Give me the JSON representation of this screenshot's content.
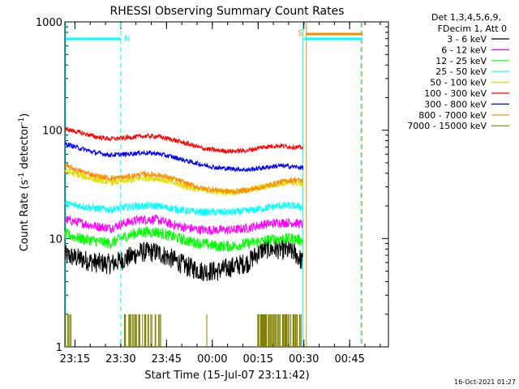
{
  "chart_data": {
    "type": "line",
    "title": "RHESSI Observing Summary Count Rates",
    "xlabel": "Start Time (15-Jul-07 23:11:42)",
    "ylabel_main": "Count Rate (s",
    "ylabel_sup1": "-1",
    "ylabel_mid": " detector",
    "ylabel_sup2": "-1",
    "ylabel_end": ")",
    "x_unit": "minutes after 23:11:42 on 15-Jul-07",
    "xlim": [
      0,
      106
    ],
    "ylim": [
      1,
      1000
    ],
    "yscale": "log",
    "x_ticks": [
      {
        "t": 3.3,
        "label": "23:15"
      },
      {
        "t": 18.3,
        "label": "23:30"
      },
      {
        "t": 33.3,
        "label": "23:45"
      },
      {
        "t": 48.3,
        "label": "00:00"
      },
      {
        "t": 63.3,
        "label": "00:15"
      },
      {
        "t": 78.3,
        "label": "00:30"
      },
      {
        "t": 93.3,
        "label": "00:45"
      }
    ],
    "y_ticks": [
      {
        "v": 1,
        "label": "1"
      },
      {
        "v": 10,
        "label": "10"
      },
      {
        "v": 100,
        "label": "100"
      },
      {
        "v": 1000,
        "label": "1000"
      }
    ],
    "legend_header": [
      "Det 1,3,4,5,6,9,",
      "FDecim 1, Att 0"
    ],
    "legend_placement": "right",
    "series": [
      {
        "name": "3 - 6 keV",
        "color": "#000000",
        "data": [
          [
            0,
            7
          ],
          [
            5,
            6.5
          ],
          [
            10,
            6
          ],
          [
            15,
            5.8
          ],
          [
            20,
            6.5
          ],
          [
            25,
            7.5
          ],
          [
            30,
            7.5
          ],
          [
            35,
            6.5
          ],
          [
            40,
            5.5
          ],
          [
            45,
            5
          ],
          [
            50,
            5
          ],
          [
            55,
            5.5
          ],
          [
            60,
            6
          ],
          [
            65,
            8
          ],
          [
            70,
            8
          ],
          [
            75,
            7.5
          ],
          [
            78,
            6
          ]
        ]
      },
      {
        "name": "6 - 12 keV",
        "color": "#ff00ff",
        "data": [
          [
            0,
            15
          ],
          [
            5,
            14
          ],
          [
            10,
            13
          ],
          [
            15,
            12.5
          ],
          [
            20,
            14
          ],
          [
            25,
            15
          ],
          [
            30,
            15
          ],
          [
            35,
            13.5
          ],
          [
            40,
            12.5
          ],
          [
            45,
            12
          ],
          [
            50,
            12
          ],
          [
            55,
            12
          ],
          [
            60,
            12.5
          ],
          [
            65,
            13.5
          ],
          [
            70,
            14
          ],
          [
            75,
            14
          ],
          [
            78,
            13.5
          ]
        ]
      },
      {
        "name": "12 - 25 keV",
        "color": "#00ff00",
        "data": [
          [
            0,
            11
          ],
          [
            5,
            10
          ],
          [
            10,
            9.5
          ],
          [
            15,
            9
          ],
          [
            20,
            10.5
          ],
          [
            25,
            11.5
          ],
          [
            30,
            11.5
          ],
          [
            35,
            10.5
          ],
          [
            40,
            9.5
          ],
          [
            45,
            9
          ],
          [
            50,
            8.5
          ],
          [
            55,
            8.5
          ],
          [
            60,
            9
          ],
          [
            65,
            9.5
          ],
          [
            70,
            10
          ],
          [
            75,
            10
          ],
          [
            78,
            9.5
          ]
        ]
      },
      {
        "name": "25 - 50 keV",
        "color": "#00ffff",
        "data": [
          [
            0,
            21
          ],
          [
            5,
            20
          ],
          [
            10,
            19
          ],
          [
            15,
            18.5
          ],
          [
            20,
            19.5
          ],
          [
            25,
            20
          ],
          [
            30,
            20
          ],
          [
            35,
            19
          ],
          [
            40,
            18
          ],
          [
            45,
            17.5
          ],
          [
            50,
            17.5
          ],
          [
            55,
            17.5
          ],
          [
            60,
            18
          ],
          [
            65,
            19
          ],
          [
            70,
            20
          ],
          [
            75,
            20
          ],
          [
            78,
            19.5
          ]
        ]
      },
      {
        "name": "50 - 100 keV",
        "color": "#e0e000",
        "data": [
          [
            0,
            42
          ],
          [
            5,
            38
          ],
          [
            10,
            35
          ],
          [
            15,
            33
          ],
          [
            20,
            34
          ],
          [
            25,
            36
          ],
          [
            30,
            36
          ],
          [
            35,
            33
          ],
          [
            40,
            30
          ],
          [
            45,
            28
          ],
          [
            50,
            27
          ],
          [
            55,
            27
          ],
          [
            60,
            28
          ],
          [
            65,
            30
          ],
          [
            70,
            32
          ],
          [
            75,
            33
          ],
          [
            78,
            32
          ]
        ]
      },
      {
        "name": "100 - 300 keV",
        "color": "#ff0000",
        "data": [
          [
            0,
            103
          ],
          [
            5,
            95
          ],
          [
            10,
            87
          ],
          [
            15,
            83
          ],
          [
            20,
            85
          ],
          [
            25,
            88
          ],
          [
            30,
            88
          ],
          [
            35,
            82
          ],
          [
            40,
            75
          ],
          [
            45,
            68
          ],
          [
            50,
            65
          ],
          [
            55,
            64
          ],
          [
            60,
            65
          ],
          [
            65,
            70
          ],
          [
            70,
            72
          ],
          [
            75,
            70
          ],
          [
            78,
            69
          ]
        ]
      },
      {
        "name": "300 - 800 keV",
        "color": "#0000ff",
        "data": [
          [
            0,
            75
          ],
          [
            5,
            68
          ],
          [
            10,
            62
          ],
          [
            15,
            59
          ],
          [
            20,
            60
          ],
          [
            25,
            62
          ],
          [
            30,
            61
          ],
          [
            35,
            57
          ],
          [
            40,
            52
          ],
          [
            45,
            48
          ],
          [
            50,
            45
          ],
          [
            55,
            44
          ],
          [
            60,
            43
          ],
          [
            65,
            45
          ],
          [
            70,
            47
          ],
          [
            75,
            46
          ],
          [
            78,
            45
          ]
        ]
      },
      {
        "name": "800 - 7000 keV",
        "color": "#ff8c00",
        "data": [
          [
            0,
            47
          ],
          [
            5,
            42
          ],
          [
            10,
            38
          ],
          [
            15,
            36
          ],
          [
            20,
            37
          ],
          [
            25,
            39
          ],
          [
            30,
            39
          ],
          [
            35,
            36
          ],
          [
            40,
            32
          ],
          [
            45,
            29
          ],
          [
            50,
            28
          ],
          [
            55,
            27
          ],
          [
            60,
            28
          ],
          [
            65,
            30
          ],
          [
            70,
            33
          ],
          [
            75,
            35
          ],
          [
            78,
            34
          ]
        ]
      },
      {
        "name": "7000 - 15000 keV",
        "color": "#808000",
        "data": []
      }
    ],
    "state_bars": [
      {
        "label": "N",
        "t_start": 0,
        "t_end": 18.3,
        "color": "#00ffff"
      },
      {
        "label": "S",
        "t_start": 78.7,
        "t_end": 97.5,
        "color": "#ff8c00"
      }
    ],
    "state_bar_second": {
      "t_start": 78.3,
      "t_end": 97.5,
      "color": "#00ffff"
    },
    "vlines": [
      {
        "t": 18.3,
        "color": "#00ffff",
        "dashed": true
      },
      {
        "t": 78.0,
        "color": "#00ffff",
        "dashed": false
      },
      {
        "t": 79.1,
        "color": "#ff8c00",
        "dashed": false
      },
      {
        "t": 97.0,
        "color": "#00ffff",
        "dashed": true
      },
      {
        "t": 97.3,
        "color": "#ff8c00",
        "dashed": true
      }
    ],
    "high_energy_spans": [
      {
        "t_start": 0,
        "t_end": 2
      },
      {
        "t_start": 19.5,
        "t_end": 31.5
      },
      {
        "t_start": 63,
        "t_end": 77.5
      }
    ],
    "footer_date": "16-Oct-2021 01:27"
  }
}
